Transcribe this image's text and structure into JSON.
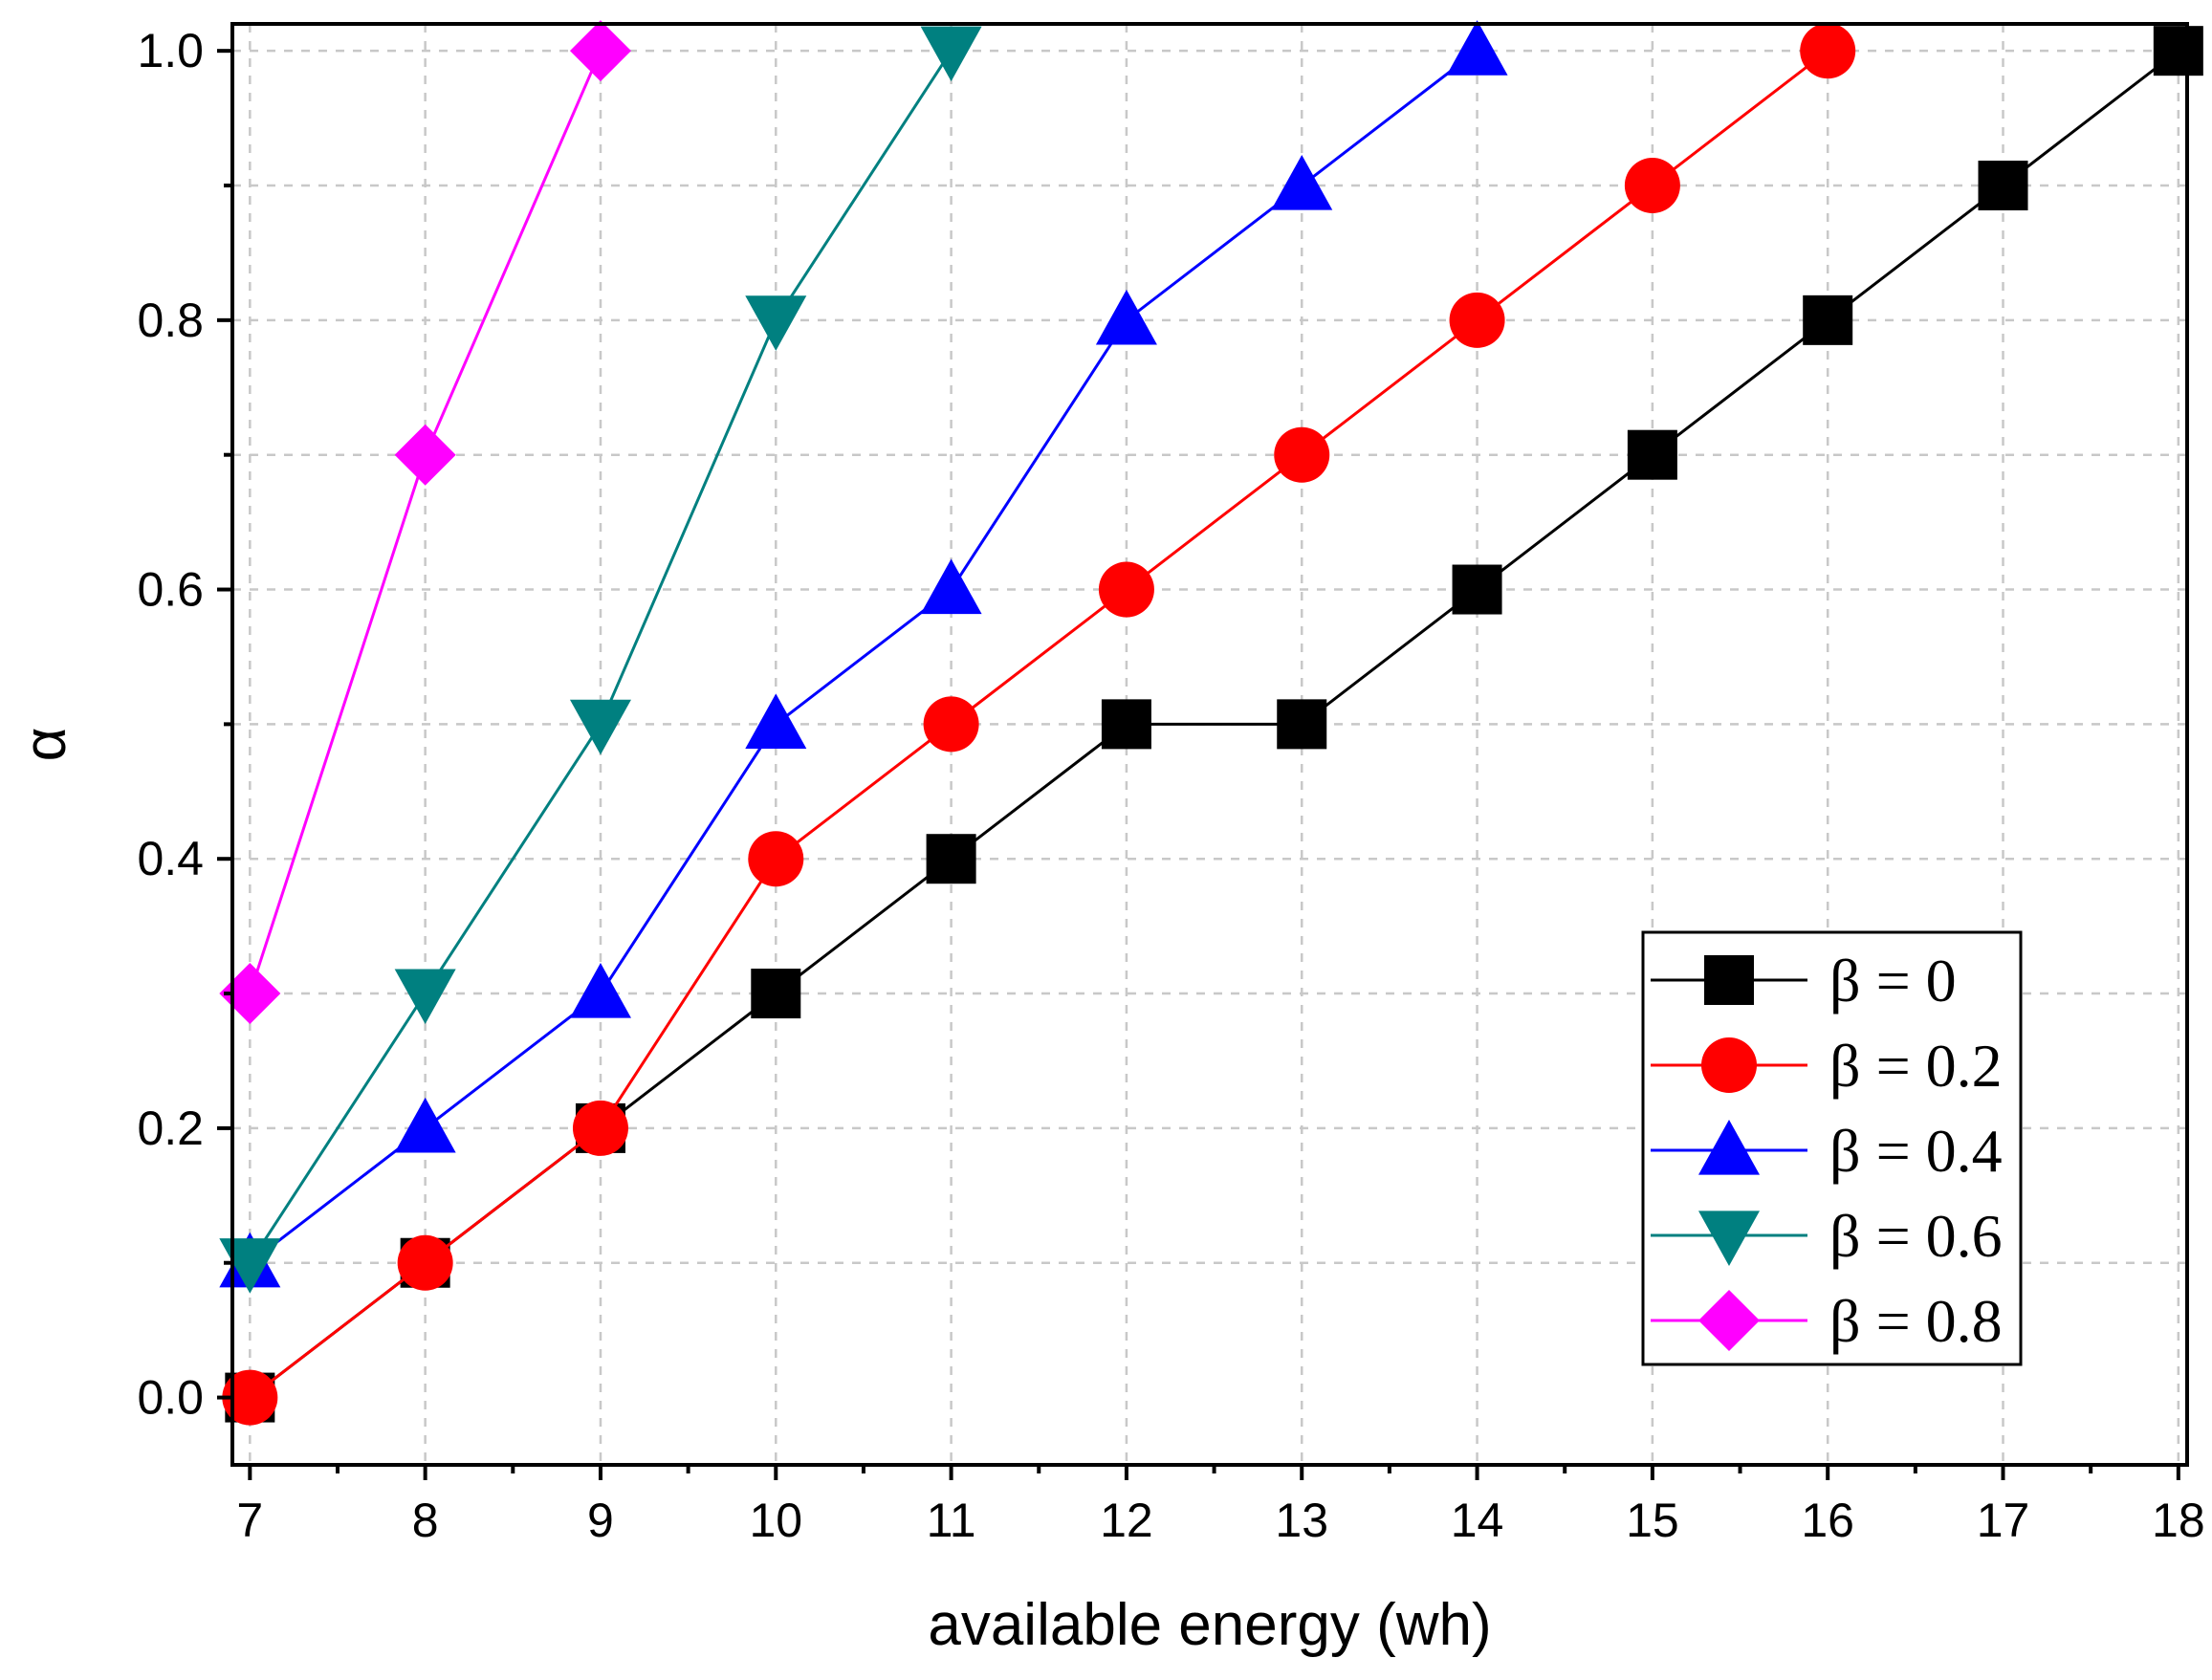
{
  "chart_data": {
    "type": "line",
    "title": "",
    "xlabel": "available energy (wh)",
    "ylabel": "α",
    "xlim": [
      6.9,
      18.05
    ],
    "ylim": [
      -0.05,
      1.02
    ],
    "x_ticks": [
      7,
      8,
      9,
      10,
      11,
      12,
      13,
      14,
      15,
      16,
      17,
      18
    ],
    "x_tick_labels": [
      "7",
      "8",
      "9",
      "10",
      "11",
      "12",
      "13",
      "14",
      "15",
      "16",
      "17",
      "18"
    ],
    "y_ticks": [
      0.0,
      0.2,
      0.4,
      0.6,
      0.8,
      1.0
    ],
    "y_tick_labels": [
      "0.0",
      "0.2",
      "0.4",
      "0.6",
      "0.8",
      "1.0"
    ],
    "grid": true,
    "legend_position": "bottom-right",
    "series": [
      {
        "name": "β = 0",
        "color": "#000000",
        "marker": "square",
        "x": [
          7,
          8,
          9,
          10,
          11,
          12,
          13,
          14,
          15,
          16,
          17,
          18
        ],
        "values": [
          0.0,
          0.1,
          0.2,
          0.3,
          0.4,
          0.5,
          0.5,
          0.6,
          0.7,
          0.8,
          0.9,
          1.0
        ]
      },
      {
        "name": "β = 0.2",
        "color": "#ff0000",
        "marker": "circle",
        "x": [
          7,
          8,
          9,
          10,
          11,
          12,
          13,
          14,
          15,
          16
        ],
        "values": [
          0.0,
          0.1,
          0.2,
          0.4,
          0.5,
          0.6,
          0.7,
          0.8,
          0.9,
          1.0
        ]
      },
      {
        "name": "β = 0.4",
        "color": "#0000ff",
        "marker": "triangle-up",
        "x": [
          7,
          8,
          9,
          10,
          11,
          12,
          13,
          14
        ],
        "values": [
          0.1,
          0.2,
          0.3,
          0.5,
          0.6,
          0.8,
          0.9,
          1.0
        ]
      },
      {
        "name": "β = 0.6",
        "color": "#008080",
        "marker": "triangle-down",
        "x": [
          7,
          8,
          9,
          10,
          11
        ],
        "values": [
          0.1,
          0.3,
          0.5,
          0.8,
          1.0
        ]
      },
      {
        "name": "β = 0.8",
        "color": "#ff00ff",
        "marker": "diamond",
        "x": [
          7,
          8,
          9
        ],
        "values": [
          0.3,
          0.7,
          1.0
        ]
      }
    ]
  }
}
